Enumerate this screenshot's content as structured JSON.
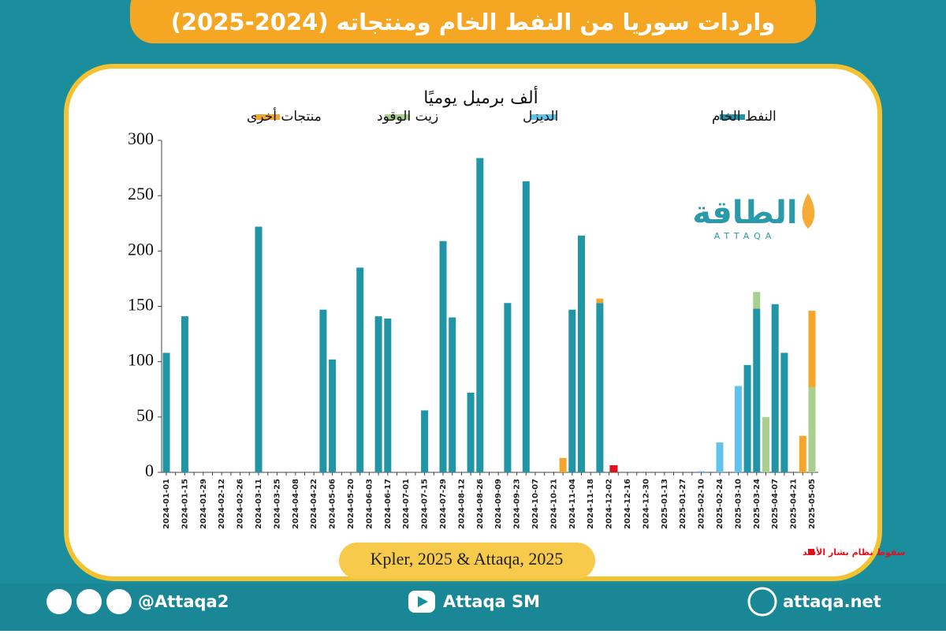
{
  "chart_data": {
    "type": "bar",
    "stacked": true,
    "title": "واردات سوريا من النفط الخام ومنتجاته (2024-2025)",
    "y_label": "ألف برميل يوميًا",
    "source": "Kpler, 2025 & Attaqa, 2025",
    "annotation": "سقوط نظام بشار الأسد",
    "annotation_color": "#e0101e",
    "legend": "top",
    "logo": {
      "name": "الطاقة",
      "subname": "ATTAQA"
    },
    "footer": {
      "social": "@Attaqa2",
      "youtube": "Attaqa SM",
      "website": "attaqa.net"
    },
    "categories": [
      "2024-01-01",
      null,
      "2024-01-15",
      null,
      "2024-01-29",
      null,
      "2024-02-12",
      null,
      "2024-02-26",
      null,
      "2024-03-11",
      null,
      "2024-03-25",
      null,
      "2024-04-08",
      null,
      "2024-04-22",
      null,
      "2024-05-06",
      null,
      "2024-05-20",
      null,
      "2024-06-03",
      null,
      "2024-06-17",
      null,
      "2024-07-01",
      null,
      "2024-07-15",
      null,
      "2024-07-29",
      null,
      "2024-08-12",
      null,
      "2024-08-26",
      null,
      "2024-09-09",
      null,
      "2024-09-23",
      null,
      "2024-10-07",
      null,
      "2024-10-21",
      null,
      "2024-11-04",
      null,
      "2024-11-18",
      null,
      "2024-12-02",
      null,
      "2024-12-16",
      null,
      "2024-12-30",
      null,
      "2025-01-13",
      null,
      "2025-01-27",
      null,
      "2025-02-10",
      null,
      "2025-02-24",
      null,
      "2025-03-10",
      null,
      "2025-03-24",
      null,
      "2025-04-07",
      null,
      "2025-04-21",
      null,
      "2025-05-05"
    ],
    "series": [
      {
        "name": "النفط الخام",
        "color": "#1f95a6",
        "values": [
          108,
          0,
          141,
          0,
          0,
          0,
          0,
          0,
          0,
          0,
          222,
          0,
          0,
          0,
          0,
          0,
          0,
          147,
          102,
          0,
          0,
          185,
          0,
          141,
          139,
          0,
          0,
          0,
          56,
          0,
          209,
          140,
          0,
          72,
          284,
          0,
          0,
          153,
          0,
          263,
          0,
          0,
          0,
          0,
          147,
          214,
          0,
          153,
          0,
          0,
          0,
          0,
          0,
          0,
          0,
          0,
          0,
          0,
          0,
          0,
          0,
          0,
          0,
          97,
          148,
          0,
          152,
          108,
          0,
          0,
          0
        ]
      },
      {
        "name": "الديزل",
        "color": "#62c3ea",
        "values": [
          0,
          0,
          0,
          0,
          0,
          0,
          0,
          0,
          0,
          0,
          0,
          0,
          0,
          0,
          0,
          0,
          0,
          0,
          0,
          0,
          0,
          0,
          0,
          0,
          0,
          0,
          0,
          0,
          0,
          0,
          0,
          0,
          0,
          0,
          0,
          0,
          0,
          0,
          0,
          0,
          0,
          0,
          0,
          0,
          0,
          0,
          0,
          0,
          0,
          0,
          0,
          0,
          0,
          0,
          0,
          0,
          0,
          0,
          1,
          0,
          27,
          0,
          78,
          0,
          0,
          0,
          0,
          0,
          0,
          0,
          0
        ]
      },
      {
        "name": "زيت الوقود",
        "color": "#a9cf8e",
        "values": [
          0,
          0,
          0,
          0,
          0,
          0,
          0,
          0,
          0,
          0,
          0,
          0,
          0,
          0,
          0,
          0,
          0,
          0,
          0,
          0,
          0,
          0,
          0,
          0,
          0,
          0,
          0,
          0,
          0,
          0,
          0,
          0,
          0,
          0,
          0,
          0,
          0,
          0,
          0,
          0,
          0,
          0,
          0,
          0,
          0,
          0,
          0,
          0,
          0,
          0,
          0,
          0,
          0,
          0,
          0,
          0,
          0,
          0,
          0,
          0,
          0,
          0,
          0,
          0,
          15,
          50,
          0,
          0,
          0,
          0,
          77
        ]
      },
      {
        "name": "منتجات أخرى",
        "color": "#f4a62a",
        "values": [
          0,
          0,
          0,
          0,
          0,
          0,
          0,
          0,
          0,
          0,
          0,
          0,
          0,
          0,
          0,
          0,
          0,
          0,
          0,
          0,
          0,
          0,
          0,
          0,
          0,
          0,
          0,
          0,
          0,
          0,
          0,
          0,
          0,
          0,
          0,
          0,
          0,
          0,
          0,
          0,
          0,
          0,
          0,
          13,
          0,
          0,
          0,
          4,
          0,
          0,
          0,
          0,
          0,
          0,
          0,
          0,
          0,
          0,
          0,
          0,
          0,
          0,
          0,
          0,
          0,
          0,
          0,
          0,
          0,
          33,
          69
        ]
      }
    ],
    "ylim": [
      0,
      300
    ],
    "yticks": [
      0,
      50,
      100,
      150,
      200,
      250,
      300
    ]
  }
}
